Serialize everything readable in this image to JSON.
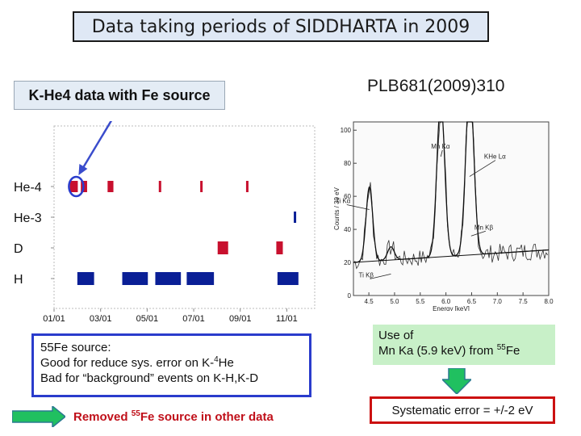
{
  "title": "Data taking periods of SIDDHARTA in 2009",
  "left_label": "K-He4 data with Fe source",
  "reference": "PLB681(2009)310",
  "chart_data": [
    {
      "type": "timeline",
      "title": "",
      "xlabel": "",
      "ylabel": "",
      "x_ticks": [
        "01/01",
        "03/01",
        "05/01",
        "07/01",
        "09/01",
        "11/01"
      ],
      "x_tick_months": [
        1,
        3,
        5,
        7,
        9,
        11
      ],
      "xlim_months": [
        1,
        12.2
      ],
      "rows": [
        "He-4",
        "He-3",
        "D",
        "H"
      ],
      "colors": {
        "blue": "#0a1f96",
        "red": "#c8102e"
      },
      "periods": [
        {
          "row": "He-4",
          "start": 1.68,
          "end": 2.02,
          "color": "red"
        },
        {
          "row": "He-4",
          "start": 2.15,
          "end": 2.42,
          "color": "red"
        },
        {
          "row": "He-4",
          "start": 3.3,
          "end": 3.55,
          "color": "red"
        },
        {
          "row": "He-4",
          "start": 5.5,
          "end": 5.55,
          "color": "red"
        },
        {
          "row": "He-4",
          "start": 7.28,
          "end": 7.33,
          "color": "red"
        },
        {
          "row": "He-4",
          "start": 9.25,
          "end": 9.3,
          "color": "red"
        },
        {
          "row": "He-3",
          "start": 11.3,
          "end": 11.38,
          "color": "blue"
        },
        {
          "row": "D",
          "start": 8.03,
          "end": 8.48,
          "color": "red"
        },
        {
          "row": "D",
          "start": 10.55,
          "end": 10.83,
          "color": "red"
        },
        {
          "row": "H",
          "start": 2.0,
          "end": 2.72,
          "color": "blue"
        },
        {
          "row": "H",
          "start": 3.93,
          "end": 5.03,
          "color": "blue"
        },
        {
          "row": "H",
          "start": 5.35,
          "end": 6.45,
          "color": "blue"
        },
        {
          "row": "H",
          "start": 6.7,
          "end": 7.87,
          "color": "blue"
        },
        {
          "row": "H",
          "start": 10.6,
          "end": 11.5,
          "color": "blue"
        }
      ],
      "marker": {
        "row": "He-4",
        "month": 1.95
      }
    },
    {
      "type": "line",
      "title": "",
      "xlabel": "Energy [keV]",
      "ylabel": "Counts / 30 eV",
      "xlim": [
        4.2,
        8.0
      ],
      "ylim": [
        0,
        105
      ],
      "x_ticks": [
        "4.5",
        "5.0",
        "5.5",
        "6.0",
        "6.5",
        "7.0",
        "7.5",
        "8.0"
      ],
      "y_ticks": [
        "0",
        "20",
        "40",
        "60",
        "80",
        "100"
      ],
      "annotations": [
        {
          "text": "Ti Kα",
          "x": 4.51,
          "y": 52
        },
        {
          "text": "Mn Kα",
          "x": 5.9,
          "y": 84
        },
        {
          "text": "KHe Lα",
          "x": 6.46,
          "y": 72
        },
        {
          "text": "Ti Kβ",
          "x": 4.93,
          "y": 13
        },
        {
          "text": "Mn Kβ",
          "x": 6.49,
          "y": 36
        }
      ],
      "peaks": [
        {
          "center": 4.51,
          "height": 45,
          "sigma": 0.065
        },
        {
          "center": 4.93,
          "height": 8,
          "sigma": 0.065
        },
        {
          "center": 5.9,
          "height": 95,
          "sigma": 0.075
        },
        {
          "center": 6.46,
          "height": 90,
          "sigma": 0.078
        },
        {
          "center": 6.49,
          "height": 14,
          "sigma": 0.075
        }
      ],
      "background": 20
    }
  ],
  "note": {
    "line1": "55Fe source:",
    "line2_pre": "Good for reduce sys. error on K-",
    "line2_sup": "4",
    "line2_post": "He",
    "line3": "Bad   for “background” events on K-H,K-D"
  },
  "mn_box": {
    "line1": "Use of",
    "line2_pre": "Mn Ka (5.9 keV) from ",
    "line2_sup": "55",
    "line2_post": "Fe"
  },
  "removed": {
    "pre": "Removed ",
    "sup": "55",
    "post": "Fe source in other data"
  },
  "systematic": "Systematic error = +/-2 eV",
  "accent_colors": {
    "note_border": "#2a3ccc",
    "sys_border": "#cc1111",
    "arrow_green": "#20c060",
    "removed_text": "#c0101a"
  }
}
